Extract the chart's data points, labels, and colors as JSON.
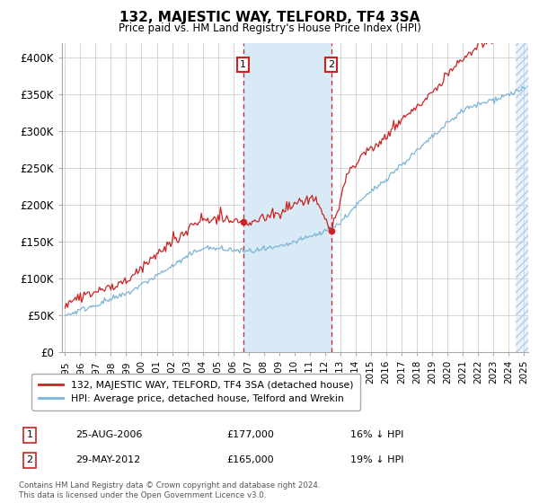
{
  "title": "132, MAJESTIC WAY, TELFORD, TF4 3SA",
  "subtitle": "Price paid vs. HM Land Registry's House Price Index (HPI)",
  "legend_line1": "132, MAJESTIC WAY, TELFORD, TF4 3SA (detached house)",
  "legend_line2": "HPI: Average price, detached house, Telford and Wrekin",
  "annotation1_date": "25-AUG-2006",
  "annotation1_price": "£177,000",
  "annotation1_hpi": "16% ↓ HPI",
  "annotation2_date": "29-MAY-2012",
  "annotation2_price": "£165,000",
  "annotation2_hpi": "19% ↓ HPI",
  "sale1_year": 2006.65,
  "sale1_price": 177000,
  "sale2_year": 2012.41,
  "sale2_price": 165000,
  "hpi_color": "#7ab4d8",
  "price_color": "#cc2222",
  "annotation_box_color": "#cc2222",
  "shaded_color": "#d8eaf5",
  "footnote": "Contains HM Land Registry data © Crown copyright and database right 2024.\nThis data is licensed under the Open Government Licence v3.0.",
  "ylim": [
    0,
    420000
  ],
  "yticks": [
    0,
    50000,
    100000,
    150000,
    200000,
    250000,
    300000,
    350000,
    400000
  ],
  "ytick_labels": [
    "£0",
    "£50K",
    "£100K",
    "£150K",
    "£200K",
    "£250K",
    "£300K",
    "£350K",
    "£400K"
  ],
  "xlim_start": 1994.8,
  "xlim_end": 2025.3
}
